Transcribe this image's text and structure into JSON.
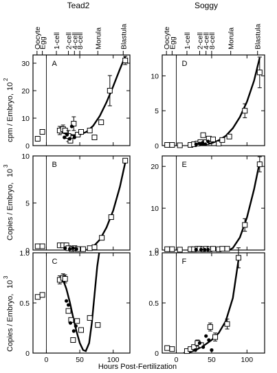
{
  "figure": {
    "x_axis_title": "Hours Post-Fertilization",
    "columns": [
      {
        "title": "Tead2"
      },
      {
        "title": "Soggy"
      }
    ],
    "stages": [
      {
        "label": "Oocyte",
        "x": -14
      },
      {
        "label": "Egg",
        "x": -6
      },
      {
        "label": "1-cell",
        "x": 15
      },
      {
        "label": "2-cell",
        "x": 33
      },
      {
        "label": "4-cell",
        "x": 42
      },
      {
        "label": "8-cell",
        "x": 50
      },
      {
        "label": "Morula",
        "x": 77
      },
      {
        "label": "Blastula",
        "x": 115
      }
    ],
    "rows": [
      {
        "y_axis_title": "cpm / Embryo,",
        "y_exponent": "10",
        "y_power": "2"
      },
      {
        "y_axis_title": "Copies / Embryo,",
        "y_exponent": "10",
        "y_power": "3"
      },
      {
        "y_axis_title": "Copies / Embryo,",
        "y_exponent": "10",
        "y_power": "3"
      }
    ],
    "x_ticks": [
      0,
      50,
      100
    ],
    "x_tick_labels": [
      "0",
      "50",
      "100"
    ]
  },
  "chart_data": [
    {
      "panel": "A",
      "gene": "Tead2",
      "type": "scatter",
      "xlabel": "Hours Post-Fertilization",
      "ylabel": "cpm / Embryo, 10^2",
      "xlim": [
        -20,
        125
      ],
      "ylim": [
        0,
        33
      ],
      "yticks": [
        0,
        10,
        20,
        30
      ],
      "ytick_labels": [
        "0",
        "10",
        "20",
        "30"
      ],
      "markers": {
        "open_squares": [
          {
            "x": -13,
            "y": 2.5
          },
          {
            "x": -6,
            "y": 5
          },
          {
            "x": 20,
            "y": 5.5,
            "err": 1.5
          },
          {
            "x": 25,
            "y": 6,
            "err": 1.5
          },
          {
            "x": 28,
            "y": 5.5
          },
          {
            "x": 33,
            "y": 3.5,
            "err": 2
          },
          {
            "x": 36,
            "y": 1.8
          },
          {
            "x": 41,
            "y": 8,
            "err": 2.5
          },
          {
            "x": 47,
            "y": 4
          },
          {
            "x": 52,
            "y": 5
          },
          {
            "x": 65,
            "y": 5.5
          },
          {
            "x": 72,
            "y": 3
          },
          {
            "x": 82,
            "y": 8.5
          },
          {
            "x": 95,
            "y": 20,
            "err": 5.5
          },
          {
            "x": 118,
            "y": 31,
            "err": 1.5
          }
        ],
        "filled_circles": [
          {
            "x": 27,
            "y": 3
          },
          {
            "x": 31,
            "y": 4
          },
          {
            "x": 35,
            "y": 2.5
          },
          {
            "x": 38,
            "y": 7
          },
          {
            "x": 42,
            "y": 3
          }
        ]
      },
      "fit_curve": [
        [
          20,
          5.2
        ],
        [
          30,
          4.2
        ],
        [
          40,
          3.8
        ],
        [
          50,
          4.0
        ],
        [
          60,
          5.0
        ],
        [
          70,
          7.2
        ],
        [
          80,
          10.8
        ],
        [
          90,
          15.8
        ],
        [
          100,
          21.6
        ],
        [
          110,
          27.8
        ],
        [
          118,
          32.5
        ]
      ]
    },
    {
      "panel": "D",
      "gene": "Soggy",
      "type": "scatter",
      "xlabel": "Hours Post-Fertilization",
      "ylabel": "cpm / Embryo, 10^2",
      "xlim": [
        -20,
        125
      ],
      "ylim": [
        0,
        13
      ],
      "yticks": [
        0,
        5,
        10
      ],
      "ytick_labels": [
        "0",
        "5",
        "10"
      ],
      "markers": {
        "open_squares": [
          {
            "x": -13,
            "y": 0.1
          },
          {
            "x": -6,
            "y": 0.1
          },
          {
            "x": 5,
            "y": 0.05
          },
          {
            "x": 20,
            "y": 0.1
          },
          {
            "x": 25,
            "y": 0.2
          },
          {
            "x": 30,
            "y": 0.3
          },
          {
            "x": 34,
            "y": 0.5
          },
          {
            "x": 38,
            "y": 1.5
          },
          {
            "x": 42,
            "y": 0.5
          },
          {
            "x": 46,
            "y": 1.0
          },
          {
            "x": 52,
            "y": 0.9
          },
          {
            "x": 60,
            "y": 0.3
          },
          {
            "x": 65,
            "y": 0.8
          },
          {
            "x": 75,
            "y": 1.3
          },
          {
            "x": 97,
            "y": 5.0,
            "err": 1.0
          },
          {
            "x": 118,
            "y": 10.5,
            "err": 2.2
          }
        ],
        "filled_circles": [
          {
            "x": 28,
            "y": 0.2
          },
          {
            "x": 33,
            "y": 0.3
          },
          {
            "x": 37,
            "y": 0.4
          },
          {
            "x": 41,
            "y": 0.2
          },
          {
            "x": 45,
            "y": 0.6
          }
        ]
      },
      "fit_curve": [
        [
          20,
          0.02
        ],
        [
          30,
          0.05
        ],
        [
          40,
          0.15
        ],
        [
          50,
          0.35
        ],
        [
          60,
          0.75
        ],
        [
          70,
          1.4
        ],
        [
          80,
          2.5
        ],
        [
          90,
          4.1
        ],
        [
          100,
          6.3
        ],
        [
          110,
          9.3
        ],
        [
          118,
          12.6
        ]
      ]
    },
    {
      "panel": "B",
      "gene": "Tead2",
      "type": "scatter",
      "xlabel": "Hours Post-Fertilization",
      "ylabel": "Copies / Embryo, 10^3",
      "xlim": [
        -20,
        125
      ],
      "ylim": [
        0,
        10
      ],
      "yticks": [
        0,
        5,
        10
      ],
      "ytick_labels": [
        "0",
        "5",
        "10"
      ],
      "markers": {
        "open_squares": [
          {
            "x": -13,
            "y": 0.4
          },
          {
            "x": -6,
            "y": 0.4
          },
          {
            "x": 20,
            "y": 0.5
          },
          {
            "x": 25,
            "y": 0.5
          },
          {
            "x": 30,
            "y": 0.5
          },
          {
            "x": 33,
            "y": 0.2
          },
          {
            "x": 38,
            "y": 0.1
          },
          {
            "x": 42,
            "y": 0.2
          },
          {
            "x": 47,
            "y": 0.1
          },
          {
            "x": 55,
            "y": 0.1
          },
          {
            "x": 65,
            "y": 0.2
          },
          {
            "x": 72,
            "y": 0.3
          },
          {
            "x": 83,
            "y": 1.3
          },
          {
            "x": 97,
            "y": 3.5
          },
          {
            "x": 118,
            "y": 9.5
          }
        ],
        "filled_circles": [
          {
            "x": 28,
            "y": 0.2
          },
          {
            "x": 35,
            "y": 0.1
          },
          {
            "x": 40,
            "y": 0.2
          },
          {
            "x": 45,
            "y": 0.1
          }
        ]
      },
      "fit_curve": [
        [
          60,
          0.02
        ],
        [
          70,
          0.35
        ],
        [
          80,
          1.1
        ],
        [
          90,
          2.4
        ],
        [
          100,
          4.2
        ],
        [
          110,
          6.7
        ],
        [
          118,
          9.3
        ]
      ]
    },
    {
      "panel": "E",
      "gene": "Soggy",
      "type": "scatter",
      "xlabel": "Hours Post-Fertilization",
      "ylabel": "Copies / Embryo, 10^3",
      "xlim": [
        -20,
        125
      ],
      "ylim": [
        0,
        22.5
      ],
      "yticks": [
        0,
        10,
        20
      ],
      "ytick_labels": [
        "0",
        "10",
        "20"
      ],
      "markers": {
        "open_squares": [
          {
            "x": -13,
            "y": 0.2
          },
          {
            "x": -6,
            "y": 0.2
          },
          {
            "x": 5,
            "y": 0.1
          },
          {
            "x": 20,
            "y": 0.2
          },
          {
            "x": 25,
            "y": 0.2
          },
          {
            "x": 30,
            "y": 0.3
          },
          {
            "x": 33,
            "y": 0.3
          },
          {
            "x": 38,
            "y": 0.2
          },
          {
            "x": 42,
            "y": 0.3
          },
          {
            "x": 47,
            "y": 0.2
          },
          {
            "x": 52,
            "y": 0.3
          },
          {
            "x": 60,
            "y": 0.2
          },
          {
            "x": 65,
            "y": 0.3
          },
          {
            "x": 72,
            "y": 0.3
          },
          {
            "x": 97,
            "y": 6,
            "err": 1.5
          },
          {
            "x": 118,
            "y": 20.5,
            "err": 1.8
          }
        ],
        "filled_circles": [
          {
            "x": 28,
            "y": 0.1
          },
          {
            "x": 35,
            "y": 0.1
          },
          {
            "x": 40,
            "y": 0.1
          },
          {
            "x": 45,
            "y": 0.1
          }
        ]
      },
      "fit_curve": [
        [
          75,
          0.0
        ],
        [
          80,
          0.5
        ],
        [
          90,
          3.0
        ],
        [
          100,
          7.8
        ],
        [
          110,
          14.5
        ],
        [
          118,
          21.0
        ]
      ]
    },
    {
      "panel": "C",
      "gene": "Tead2",
      "type": "scatter",
      "xlabel": "Hours Post-Fertilization",
      "ylabel": "Copies / Embryo, 10^3",
      "xlim": [
        -20,
        125
      ],
      "ylim": [
        0,
        1.0
      ],
      "yticks": [
        0,
        0.5,
        1.0
      ],
      "ytick_labels": [
        "0",
        "0.5",
        "1.0"
      ],
      "markers": {
        "open_squares": [
          {
            "x": -13,
            "y": 0.56
          },
          {
            "x": -6,
            "y": 0.58
          },
          {
            "x": 20,
            "y": 0.73,
            "err": 0.04
          },
          {
            "x": 25,
            "y": 0.75,
            "err": 0.04
          },
          {
            "x": 28,
            "y": 0.74,
            "err": 0.04
          },
          {
            "x": 33,
            "y": 0.42
          },
          {
            "x": 37,
            "y": 0.33
          },
          {
            "x": 40,
            "y": 0.13
          },
          {
            "x": 46,
            "y": 0.32
          },
          {
            "x": 52,
            "y": 0.23
          },
          {
            "x": 65,
            "y": 0.35
          },
          {
            "x": 77,
            "y": 0.28
          }
        ],
        "filled_circles": [
          {
            "x": 30,
            "y": 0.52
          },
          {
            "x": 33,
            "y": 0.48
          },
          {
            "x": 36,
            "y": 0.3
          },
          {
            "x": 41,
            "y": 0.22
          },
          {
            "x": 44,
            "y": 0.27
          }
        ]
      },
      "fit_curve": [
        [
          25,
          0.73
        ],
        [
          30,
          0.64
        ],
        [
          35,
          0.51
        ],
        [
          40,
          0.36
        ],
        [
          45,
          0.22
        ],
        [
          50,
          0.1
        ],
        [
          55,
          0.03
        ],
        [
          59,
          0.02
        ],
        [
          64,
          0.1
        ],
        [
          68,
          0.3
        ],
        [
          72,
          0.58
        ],
        [
          76,
          0.86
        ],
        [
          79,
          1.0
        ]
      ]
    },
    {
      "panel": "F",
      "gene": "Soggy",
      "type": "scatter",
      "xlabel": "Hours Post-Fertilization",
      "ylabel": "Copies / Embryo, 10^3",
      "xlim": [
        -20,
        125
      ],
      "ylim": [
        0,
        1.0
      ],
      "yticks": [
        0,
        0.5,
        1.0
      ],
      "ytick_labels": [
        "0",
        "0.5",
        "1.0"
      ],
      "markers": {
        "open_squares": [
          {
            "x": -13,
            "y": 0.05
          },
          {
            "x": -6,
            "y": 0.04
          },
          {
            "x": 15,
            "y": 0.02
          },
          {
            "x": 20,
            "y": 0.04
          },
          {
            "x": 25,
            "y": 0.06
          },
          {
            "x": 30,
            "y": 0.1,
            "err": 0.03
          },
          {
            "x": 35,
            "y": 0.08
          },
          {
            "x": 48,
            "y": 0.26,
            "err": 0.04
          },
          {
            "x": 55,
            "y": 0.16,
            "err": 0.04
          },
          {
            "x": 72,
            "y": 0.29,
            "err": 0.05
          },
          {
            "x": 88,
            "y": 0.95,
            "err": 0.1
          }
        ],
        "filled_circles": [
          {
            "x": 27,
            "y": 0.03
          },
          {
            "x": 33,
            "y": 0.1
          },
          {
            "x": 38,
            "y": 0.06
          },
          {
            "x": 42,
            "y": 0.17
          },
          {
            "x": 46,
            "y": 0.13
          },
          {
            "x": 50,
            "y": 0.03
          }
        ]
      },
      "fit_curve": [
        [
          10,
          0.0
        ],
        [
          20,
          0.01
        ],
        [
          30,
          0.04
        ],
        [
          40,
          0.08
        ],
        [
          50,
          0.13
        ],
        [
          60,
          0.2
        ],
        [
          70,
          0.32
        ],
        [
          80,
          0.55
        ],
        [
          88,
          0.93
        ]
      ]
    }
  ]
}
